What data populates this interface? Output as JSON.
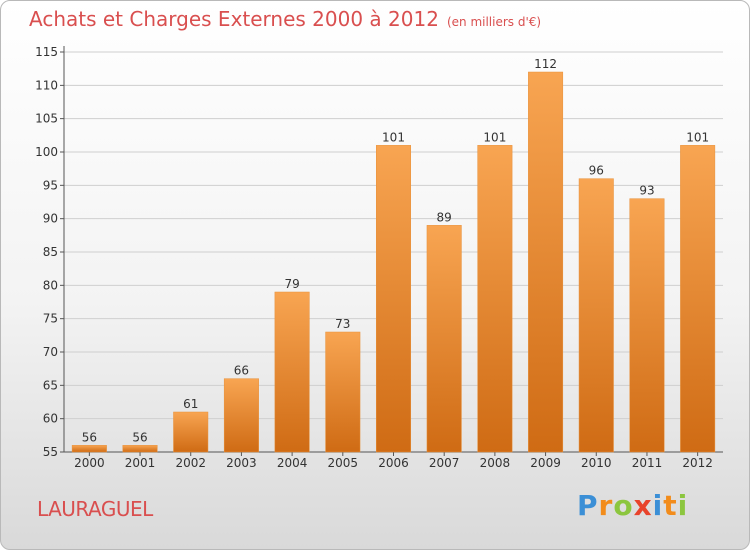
{
  "title": "Achats et Charges Externes 2000 à 2012",
  "unit_note": "(en milliers d'€)",
  "place_name": "LAURAGUEL",
  "logo": {
    "text": "Proxiti",
    "letters": [
      {
        "ch": "P",
        "color": "#3b8fd6"
      },
      {
        "ch": "r",
        "color": "#f28c1b"
      },
      {
        "ch": "o",
        "color": "#8cc63f"
      },
      {
        "ch": "x",
        "color": "#e8432b"
      },
      {
        "ch": "i",
        "color": "#3b8fd6"
      },
      {
        "ch": "t",
        "color": "#f28c1b"
      },
      {
        "ch": "i",
        "color": "#8cc63f"
      }
    ]
  },
  "colors": {
    "title": "#d94f4f",
    "bar_top": "#f8a552",
    "bar_bottom": "#cf6b14",
    "grid": "#cfcfcf"
  },
  "chart_data": {
    "type": "bar",
    "title": "Achats et Charges Externes 2000 à 2012",
    "subtitle": "(en milliers d'€)",
    "categories": [
      "2000",
      "2001",
      "2002",
      "2003",
      "2004",
      "2005",
      "2006",
      "2007",
      "2008",
      "2009",
      "2010",
      "2011",
      "2012"
    ],
    "values": [
      56,
      56,
      61,
      66,
      79,
      73,
      101,
      89,
      101,
      112,
      96,
      93,
      101
    ],
    "ylim": [
      55,
      115
    ],
    "yticks": [
      55,
      60,
      65,
      70,
      75,
      80,
      85,
      90,
      95,
      100,
      105,
      110,
      115
    ],
    "grid": true,
    "xlabel": "",
    "ylabel": ""
  }
}
